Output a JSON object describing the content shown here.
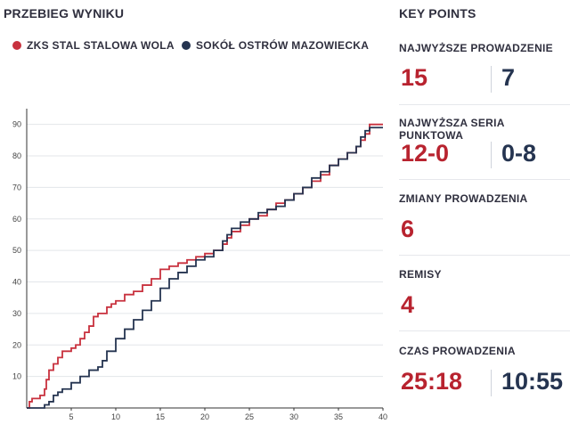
{
  "header": {
    "title": "PRZEBIEG WYNIKU",
    "key_points_title": "KEY POINTS"
  },
  "legend": [
    {
      "name": "ZKS STAL STALOWA WOLA",
      "color": "#c8313e"
    },
    {
      "name": "SOKÓŁ OSTRÓW MAZOWIECKA",
      "color": "#253450"
    }
  ],
  "key_points": [
    {
      "label": "NAJWYŻSZE PROWADZENIE",
      "home": "15",
      "away": "7"
    },
    {
      "label": "NAJWYŻSZA SERIA PUNKTOWA",
      "home": "12-0",
      "away": "0-8"
    },
    {
      "label": "ZMIANY PROWADZENIA",
      "home": "6",
      "away": ""
    },
    {
      "label": "REMISY",
      "home": "4",
      "away": ""
    },
    {
      "label": "CZAS PROWADZENIA",
      "home": "25:18",
      "away": "10:55"
    }
  ],
  "chart_data": {
    "type": "line",
    "title": "",
    "xlabel": "",
    "ylabel": "",
    "xlim": [
      0,
      40
    ],
    "ylim": [
      0,
      95
    ],
    "x_ticks": [
      5,
      10,
      15,
      20,
      25,
      30,
      35,
      40
    ],
    "y_ticks": [
      10,
      20,
      30,
      40,
      50,
      60,
      70,
      80,
      90
    ],
    "grid": true,
    "series": [
      {
        "name": "ZKS STAL STALOWA WOLA",
        "color": "#c8313e",
        "x": [
          0,
          0.3,
          0.6,
          1.5,
          2.0,
          2.2,
          2.5,
          3.0,
          3.5,
          4.0,
          4.5,
          5.0,
          5.5,
          6.0,
          6.5,
          7.0,
          7.5,
          8.0,
          8.5,
          9.0,
          9.5,
          10.0,
          11.0,
          12.0,
          13.0,
          14.0,
          15.0,
          16.0,
          17.0,
          18.0,
          19.0,
          20.0,
          21.0,
          22.0,
          22.5,
          23.0,
          24.0,
          25.0,
          26.0,
          27.0,
          28.0,
          29.0,
          30.0,
          31.0,
          32.0,
          33.0,
          34.0,
          35.0,
          36.0,
          37.0,
          37.5,
          38.0,
          38.5,
          40.0
        ],
        "y": [
          0,
          2,
          3,
          4,
          6,
          9,
          12,
          14,
          16,
          18,
          18,
          19,
          20,
          22,
          24,
          26,
          29,
          30,
          30,
          32,
          33,
          34,
          36,
          37,
          39,
          41,
          44,
          45,
          46,
          47,
          48,
          49,
          50,
          52,
          54,
          56,
          58,
          60,
          61,
          63,
          65,
          66,
          68,
          70,
          72,
          74,
          77,
          79,
          81,
          83,
          85,
          87,
          90,
          90
        ]
      },
      {
        "name": "SOKÓŁ OSTRÓW MAZOWIECKA",
        "color": "#253450",
        "x": [
          0,
          1.0,
          2.0,
          2.5,
          3.0,
          3.5,
          4.0,
          5.0,
          6.0,
          7.0,
          8.0,
          8.5,
          9.0,
          10.0,
          11.0,
          12.0,
          13.0,
          14.0,
          15.0,
          16.0,
          17.0,
          18.0,
          19.0,
          20.0,
          21.0,
          22.0,
          22.5,
          23.0,
          24.0,
          25.0,
          26.0,
          27.0,
          28.0,
          29.0,
          30.0,
          31.0,
          32.0,
          33.0,
          34.0,
          35.0,
          36.0,
          37.0,
          37.5,
          38.0,
          38.5,
          40.0
        ],
        "y": [
          0,
          0,
          1,
          2,
          4,
          5,
          6,
          8,
          10,
          12,
          13,
          15,
          18,
          22,
          25,
          28,
          31,
          34,
          38,
          41,
          43,
          45,
          47,
          48,
          50,
          53,
          55,
          57,
          59,
          60,
          62,
          63,
          64,
          66,
          68,
          70,
          73,
          75,
          77,
          79,
          81,
          83,
          86,
          88,
          89,
          89
        ]
      }
    ]
  }
}
